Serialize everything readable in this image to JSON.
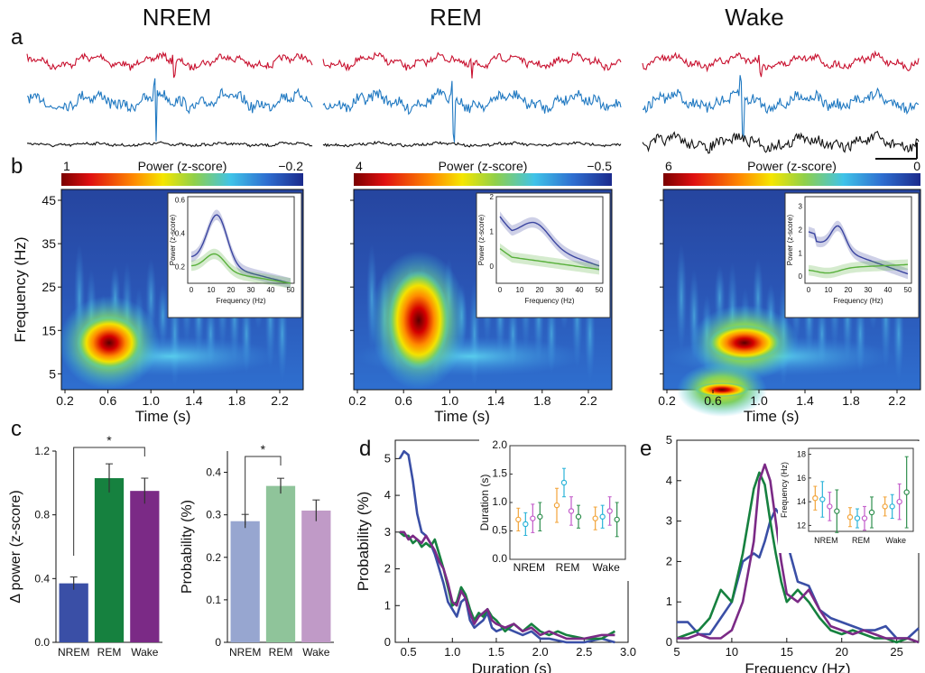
{
  "panel_letters": {
    "a": "a",
    "b": "b",
    "c": "c",
    "d": "d",
    "e": "e"
  },
  "states": [
    "NREM",
    "REM",
    "Wake"
  ],
  "colors": {
    "trace_red": "#c8102e",
    "trace_blue": "#1f78c1",
    "trace_black": "#111111",
    "nrem": "#3a4fa6",
    "rem": "#16813f",
    "wake": "#7b2a86",
    "nrem_light": "#97a6d0",
    "rem_light": "#8fc49a",
    "wake_light": "#c09ac7",
    "inset_blue": "#3b45a0",
    "inset_green": "#58b03b"
  },
  "spectrogram": {
    "colorbar_label": "Power (z-score)",
    "ylabel": "Frequency (Hz)",
    "xlabel": "Time (s)",
    "yticks": [
      "45",
      "35",
      "25",
      "15",
      "5"
    ],
    "xticks_nrem": [
      "0.2",
      "0.6",
      "1.0",
      "1.4",
      "1.8",
      "2.2"
    ],
    "xticks_rem": [
      "0.2",
      "0.6",
      "1.0",
      "1.4",
      "1.8",
      "2.2"
    ],
    "xticks_wake": [
      "0.2",
      "0.6",
      "1.0",
      "1.4",
      "1.8",
      "2.2"
    ],
    "colorbars": [
      {
        "max": "1",
        "min": "−0.2"
      },
      {
        "max": "4",
        "min": "−0.5"
      },
      {
        "max": "6",
        "min": "0"
      }
    ],
    "inset": {
      "ylabel": "Power (z-score)",
      "xlabel": "Frequency (Hz)",
      "xticks": [
        "0",
        "10",
        "20",
        "30",
        "40",
        "50"
      ],
      "yticks": [
        [
          "0.2",
          "0.4",
          "0.6"
        ],
        [
          "0",
          "1",
          "2"
        ],
        [
          "0",
          "1",
          "2",
          "3"
        ]
      ]
    }
  },
  "chart_data": [
    {
      "type": "bar",
      "panel": "c-left",
      "categories": [
        "NREM",
        "REM",
        "Wake"
      ],
      "values": [
        0.37,
        1.03,
        0.95
      ],
      "errors": [
        0.04,
        0.09,
        0.08
      ],
      "ylabel": "Δ power (z-score)",
      "ylim": [
        0,
        1.2
      ],
      "yticks": [
        "0.0",
        "0.4",
        "0.8",
        "1.2"
      ],
      "significance": "*"
    },
    {
      "type": "bar",
      "panel": "c-right",
      "categories": [
        "NREM",
        "REM",
        "Wake"
      ],
      "values": [
        0.285,
        0.368,
        0.31
      ],
      "errors": [
        0.016,
        0.018,
        0.025
      ],
      "ylabel": "Probability (%)",
      "ylim": [
        0,
        0.45
      ],
      "yticks": [
        "0",
        "0.1",
        "0.2",
        "0.3",
        "0.4"
      ],
      "significance": "*"
    },
    {
      "type": "line",
      "panel": "d",
      "xlabel": "Duration (s)",
      "ylabel": "Probability (%)",
      "xlim": [
        0.35,
        3.0
      ],
      "ylim": [
        0,
        5.5
      ],
      "xticks": [
        "0.5",
        "1.0",
        "1.5",
        "2.0",
        "2.5",
        "3.0"
      ],
      "yticks": [
        "0",
        "1",
        "2",
        "3",
        "4",
        "5"
      ],
      "series": [
        {
          "name": "NREM",
          "x": [
            0.4,
            0.45,
            0.5,
            0.55,
            0.6,
            0.65,
            0.7,
            0.75,
            0.8,
            0.85,
            0.9,
            0.95,
            1.0,
            1.05,
            1.1,
            1.15,
            1.2,
            1.25,
            1.3,
            1.35,
            1.4,
            1.45,
            1.5,
            1.6,
            1.7,
            1.8,
            1.9,
            2.0,
            2.1,
            2.2,
            2.3,
            2.5,
            2.7,
            2.85
          ],
          "y": [
            5.0,
            5.2,
            5.1,
            4.4,
            3.5,
            3.0,
            2.9,
            2.7,
            2.4,
            2.0,
            1.6,
            1.1,
            0.9,
            0.7,
            1.1,
            1.2,
            0.6,
            0.4,
            0.5,
            0.6,
            0.8,
            0.4,
            0.3,
            0.4,
            0.3,
            0.2,
            0.3,
            0.1,
            0.1,
            0.05,
            0.0,
            0.0,
            0.1,
            0.0
          ]
        },
        {
          "name": "REM",
          "x": [
            0.4,
            0.45,
            0.5,
            0.55,
            0.6,
            0.65,
            0.7,
            0.75,
            0.8,
            0.85,
            0.9,
            0.95,
            1.0,
            1.05,
            1.1,
            1.15,
            1.2,
            1.25,
            1.3,
            1.35,
            1.4,
            1.45,
            1.5,
            1.6,
            1.7,
            1.8,
            1.9,
            2.0,
            2.1,
            2.2,
            2.3,
            2.5,
            2.7,
            2.85
          ],
          "y": [
            3.0,
            2.9,
            2.9,
            2.7,
            2.8,
            2.6,
            2.7,
            2.6,
            2.8,
            2.4,
            2.0,
            1.5,
            1.0,
            1.1,
            1.5,
            1.3,
            0.9,
            0.6,
            0.8,
            0.7,
            0.9,
            0.7,
            0.6,
            0.3,
            0.5,
            0.3,
            0.5,
            0.3,
            0.2,
            0.3,
            0.2,
            0.1,
            0.1,
            0.3
          ]
        },
        {
          "name": "Wake",
          "x": [
            0.4,
            0.45,
            0.5,
            0.55,
            0.6,
            0.65,
            0.7,
            0.75,
            0.8,
            0.85,
            0.9,
            0.95,
            1.0,
            1.05,
            1.1,
            1.15,
            1.2,
            1.25,
            1.3,
            1.35,
            1.4,
            1.45,
            1.5,
            1.6,
            1.7,
            1.8,
            1.9,
            2.0,
            2.1,
            2.2,
            2.3,
            2.5,
            2.7,
            2.85
          ],
          "y": [
            3.0,
            3.0,
            2.8,
            2.9,
            2.8,
            2.7,
            2.9,
            2.7,
            2.5,
            2.2,
            2.0,
            1.6,
            1.1,
            1.0,
            1.4,
            1.2,
            0.8,
            0.5,
            0.7,
            0.8,
            0.9,
            0.6,
            0.5,
            0.4,
            0.5,
            0.3,
            0.4,
            0.2,
            0.3,
            0.2,
            0.1,
            0.1,
            0.2,
            0.2
          ]
        }
      ],
      "inset": {
        "type": "scatter",
        "ylabel": "Duration (s)",
        "categories": [
          "NREM",
          "REM",
          "Wake"
        ],
        "ylim": [
          0,
          2.0
        ],
        "yticks": [
          "0.0",
          "0.5",
          "1.0",
          "1.5",
          "2.0"
        ],
        "groups": [
          {
            "means": [
              0.7,
              0.62,
              0.72,
              0.75
            ],
            "errs": [
              0.2,
              0.2,
              0.25,
              0.25
            ]
          },
          {
            "means": [
              0.95,
              1.35,
              0.85,
              0.75
            ],
            "errs": [
              0.3,
              0.25,
              0.25,
              0.2
            ]
          },
          {
            "means": [
              0.72,
              0.75,
              0.85,
              0.7
            ],
            "errs": [
              0.2,
              0.2,
              0.25,
              0.3
            ]
          }
        ],
        "point_colors": [
          "#f2a43a",
          "#2ab3d8",
          "#c25ac9",
          "#2f8f4e"
        ]
      }
    },
    {
      "type": "line",
      "panel": "e",
      "xlabel": "Frequency (Hz)",
      "ylabel": "",
      "xlim": [
        5,
        27
      ],
      "ylim": [
        0,
        5
      ],
      "xticks": [
        "5",
        "10",
        "15",
        "20",
        "25"
      ],
      "yticks": [
        "0",
        "1",
        "2",
        "3",
        "4",
        "5"
      ],
      "series": [
        {
          "name": "NREM",
          "x": [
            5,
            6,
            7,
            8,
            9,
            10,
            11,
            12,
            12.5,
            13,
            13.5,
            14,
            14.5,
            15,
            16,
            17,
            18,
            19,
            20,
            21,
            22,
            23,
            24,
            25,
            26,
            27
          ],
          "y": [
            0.5,
            0.5,
            0.2,
            0.2,
            0.6,
            1.0,
            2.0,
            2.2,
            2.1,
            2.5,
            3.0,
            3.3,
            3.1,
            2.5,
            1.5,
            1.4,
            0.8,
            0.6,
            0.5,
            0.4,
            0.3,
            0.3,
            0.4,
            0.1,
            0.1,
            0.35
          ]
        },
        {
          "name": "REM",
          "x": [
            5,
            6,
            7,
            8,
            9,
            10,
            11,
            12,
            12.5,
            13,
            13.5,
            14,
            14.5,
            15,
            16,
            17,
            18,
            19,
            20,
            21,
            22,
            23,
            24,
            25,
            26,
            27
          ],
          "y": [
            0.1,
            0.2,
            0.3,
            0.6,
            1.3,
            1.0,
            2.2,
            3.8,
            4.2,
            3.9,
            3.0,
            2.2,
            1.5,
            1.0,
            1.3,
            1.0,
            0.6,
            0.3,
            0.2,
            0.3,
            0.2,
            0.1,
            0.1,
            0.0,
            0.1,
            0.0
          ]
        },
        {
          "name": "Wake",
          "x": [
            5,
            6,
            7,
            8,
            9,
            10,
            11,
            12,
            12.5,
            13,
            13.5,
            14,
            14.5,
            15,
            16,
            17,
            18,
            19,
            20,
            21,
            22,
            23,
            24,
            25,
            26,
            27
          ],
          "y": [
            0.1,
            0.1,
            0.2,
            0.1,
            0.1,
            0.3,
            1.0,
            2.5,
            4.0,
            4.4,
            4.0,
            3.0,
            2.0,
            1.2,
            1.0,
            1.3,
            0.8,
            0.4,
            0.3,
            0.2,
            0.3,
            0.2,
            0.1,
            0.1,
            0.1,
            0.0
          ]
        }
      ],
      "inset": {
        "type": "scatter",
        "ylabel": "Frequency (Hz)",
        "categories": [
          "NREM",
          "REM",
          "Wake"
        ],
        "ylim": [
          11.5,
          18.5
        ],
        "yticks": [
          "12",
          "14",
          "16",
          "18"
        ],
        "groups": [
          {
            "means": [
              14.3,
              14.2,
              13.6,
              13.2
            ],
            "errs": [
              1.0,
              1.5,
              1.2,
              1.8
            ]
          },
          {
            "means": [
              12.7,
              12.6,
              12.6,
              13.1
            ],
            "errs": [
              0.8,
              0.8,
              1.0,
              1.3
            ]
          },
          {
            "means": [
              13.6,
              13.6,
              14.0,
              14.8
            ],
            "errs": [
              0.8,
              1.0,
              1.5,
              3.0
            ]
          }
        ],
        "point_colors": [
          "#f2a43a",
          "#2ab3d8",
          "#c25ac9",
          "#2f8f4e"
        ]
      }
    }
  ],
  "scale_bar": true
}
